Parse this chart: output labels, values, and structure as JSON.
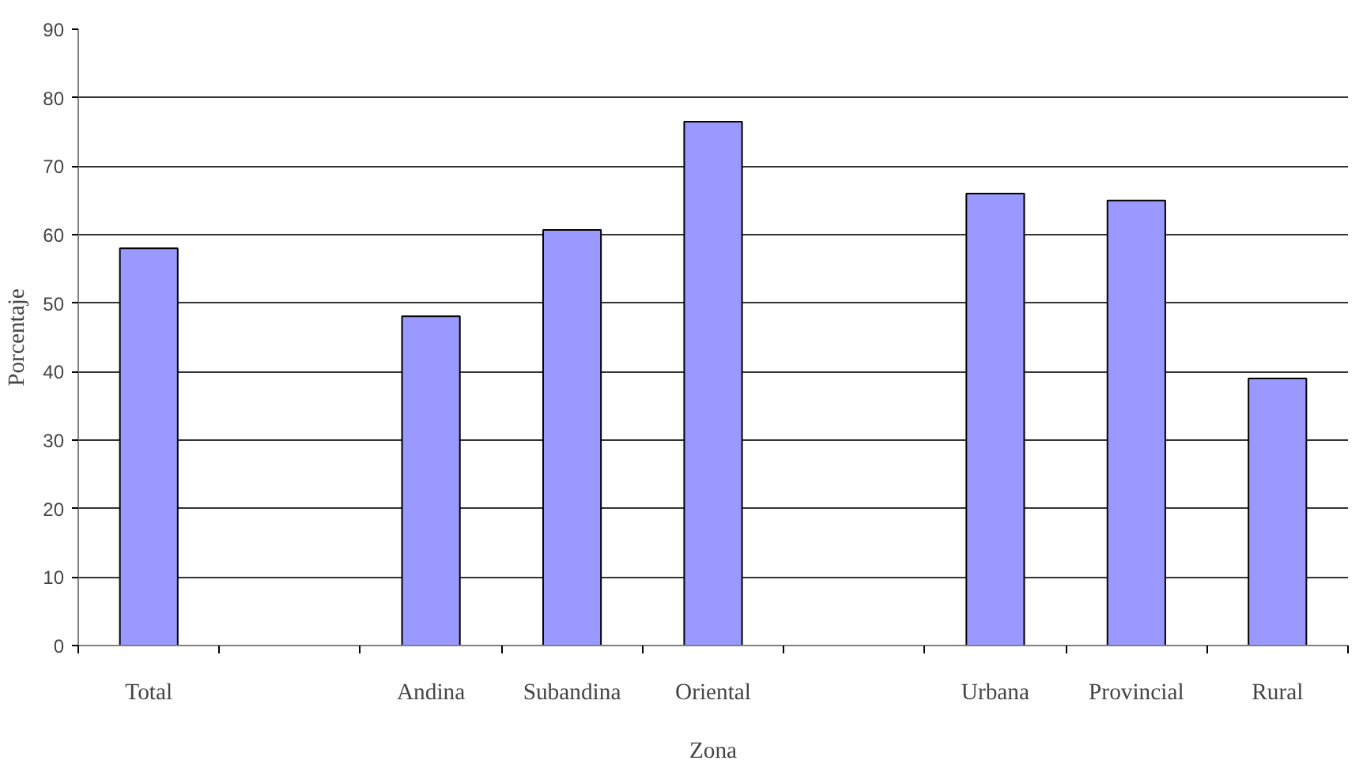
{
  "chart_data": {
    "type": "bar",
    "xlabel": "Zona",
    "ylabel": "Porcentaje",
    "categories": [
      "Total",
      null,
      "Andina",
      "Subandina",
      "Oriental",
      null,
      "Urbana",
      "Provincial",
      "Rural"
    ],
    "values": [
      58.0,
      null,
      48.1,
      60.7,
      76.5,
      null,
      66.0,
      65.0,
      39.0
    ],
    "color": "#9999ff",
    "ylim": [
      0,
      90
    ],
    "yticks": [
      0,
      10,
      20,
      30,
      40,
      50,
      60,
      70,
      80,
      90
    ],
    "grid": "y"
  }
}
